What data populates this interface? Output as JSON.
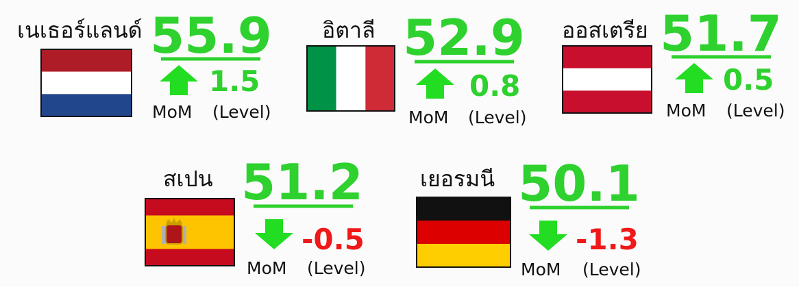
{
  "countries": [
    {
      "name": "เนเธอร์แลนด์",
      "value": 55.9,
      "change": 1.5
    },
    {
      "name": "อิตาลี",
      "value": 52.9,
      "change": 0.8
    },
    {
      "name": "ออสเตรีย",
      "value": 51.7,
      "change": 0.5
    },
    {
      "name": "สเปน",
      "value": 51.2,
      "change": -0.5
    },
    {
      "name": "เยอรมนี",
      "value": 50.1,
      "change": -1.3
    }
  ],
  "change_label": "MoM",
  "change_unit": "(Level)"
}
